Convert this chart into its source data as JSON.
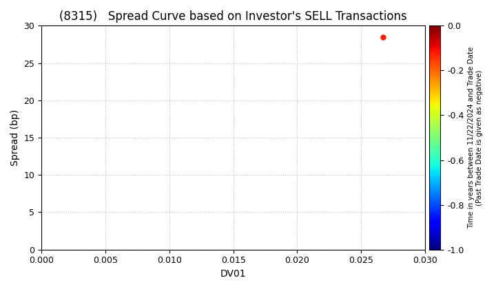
{
  "title": "(8315)   Spread Curve based on Investor's SELL Transactions",
  "xlabel": "DV01",
  "ylabel": "Spread (bp)",
  "xlim": [
    0.0,
    0.03
  ],
  "ylim": [
    0,
    30
  ],
  "xticks": [
    0.0,
    0.005,
    0.01,
    0.015,
    0.02,
    0.025,
    0.03
  ],
  "yticks": [
    0,
    5,
    10,
    15,
    20,
    25,
    30
  ],
  "scatter_x": [
    0.0267
  ],
  "scatter_y": [
    28.5
  ],
  "scatter_time": [
    -0.12
  ],
  "colorbar_label": "Time in years between 11/22/2024 and Trade Date\n(Past Trade Date is given as negative)",
  "colorbar_vmin": -1.0,
  "colorbar_vmax": 0.0,
  "colorbar_ticks": [
    0.0,
    -0.2,
    -0.4,
    -0.6,
    -0.8,
    -1.0
  ],
  "cmap": "jet",
  "title_fontsize": 12,
  "axis_fontsize": 10,
  "tick_fontsize": 9,
  "background_color": "#ffffff",
  "grid_color": "#bbbbbb",
  "grid_linestyle": ":",
  "marker_size": 25
}
